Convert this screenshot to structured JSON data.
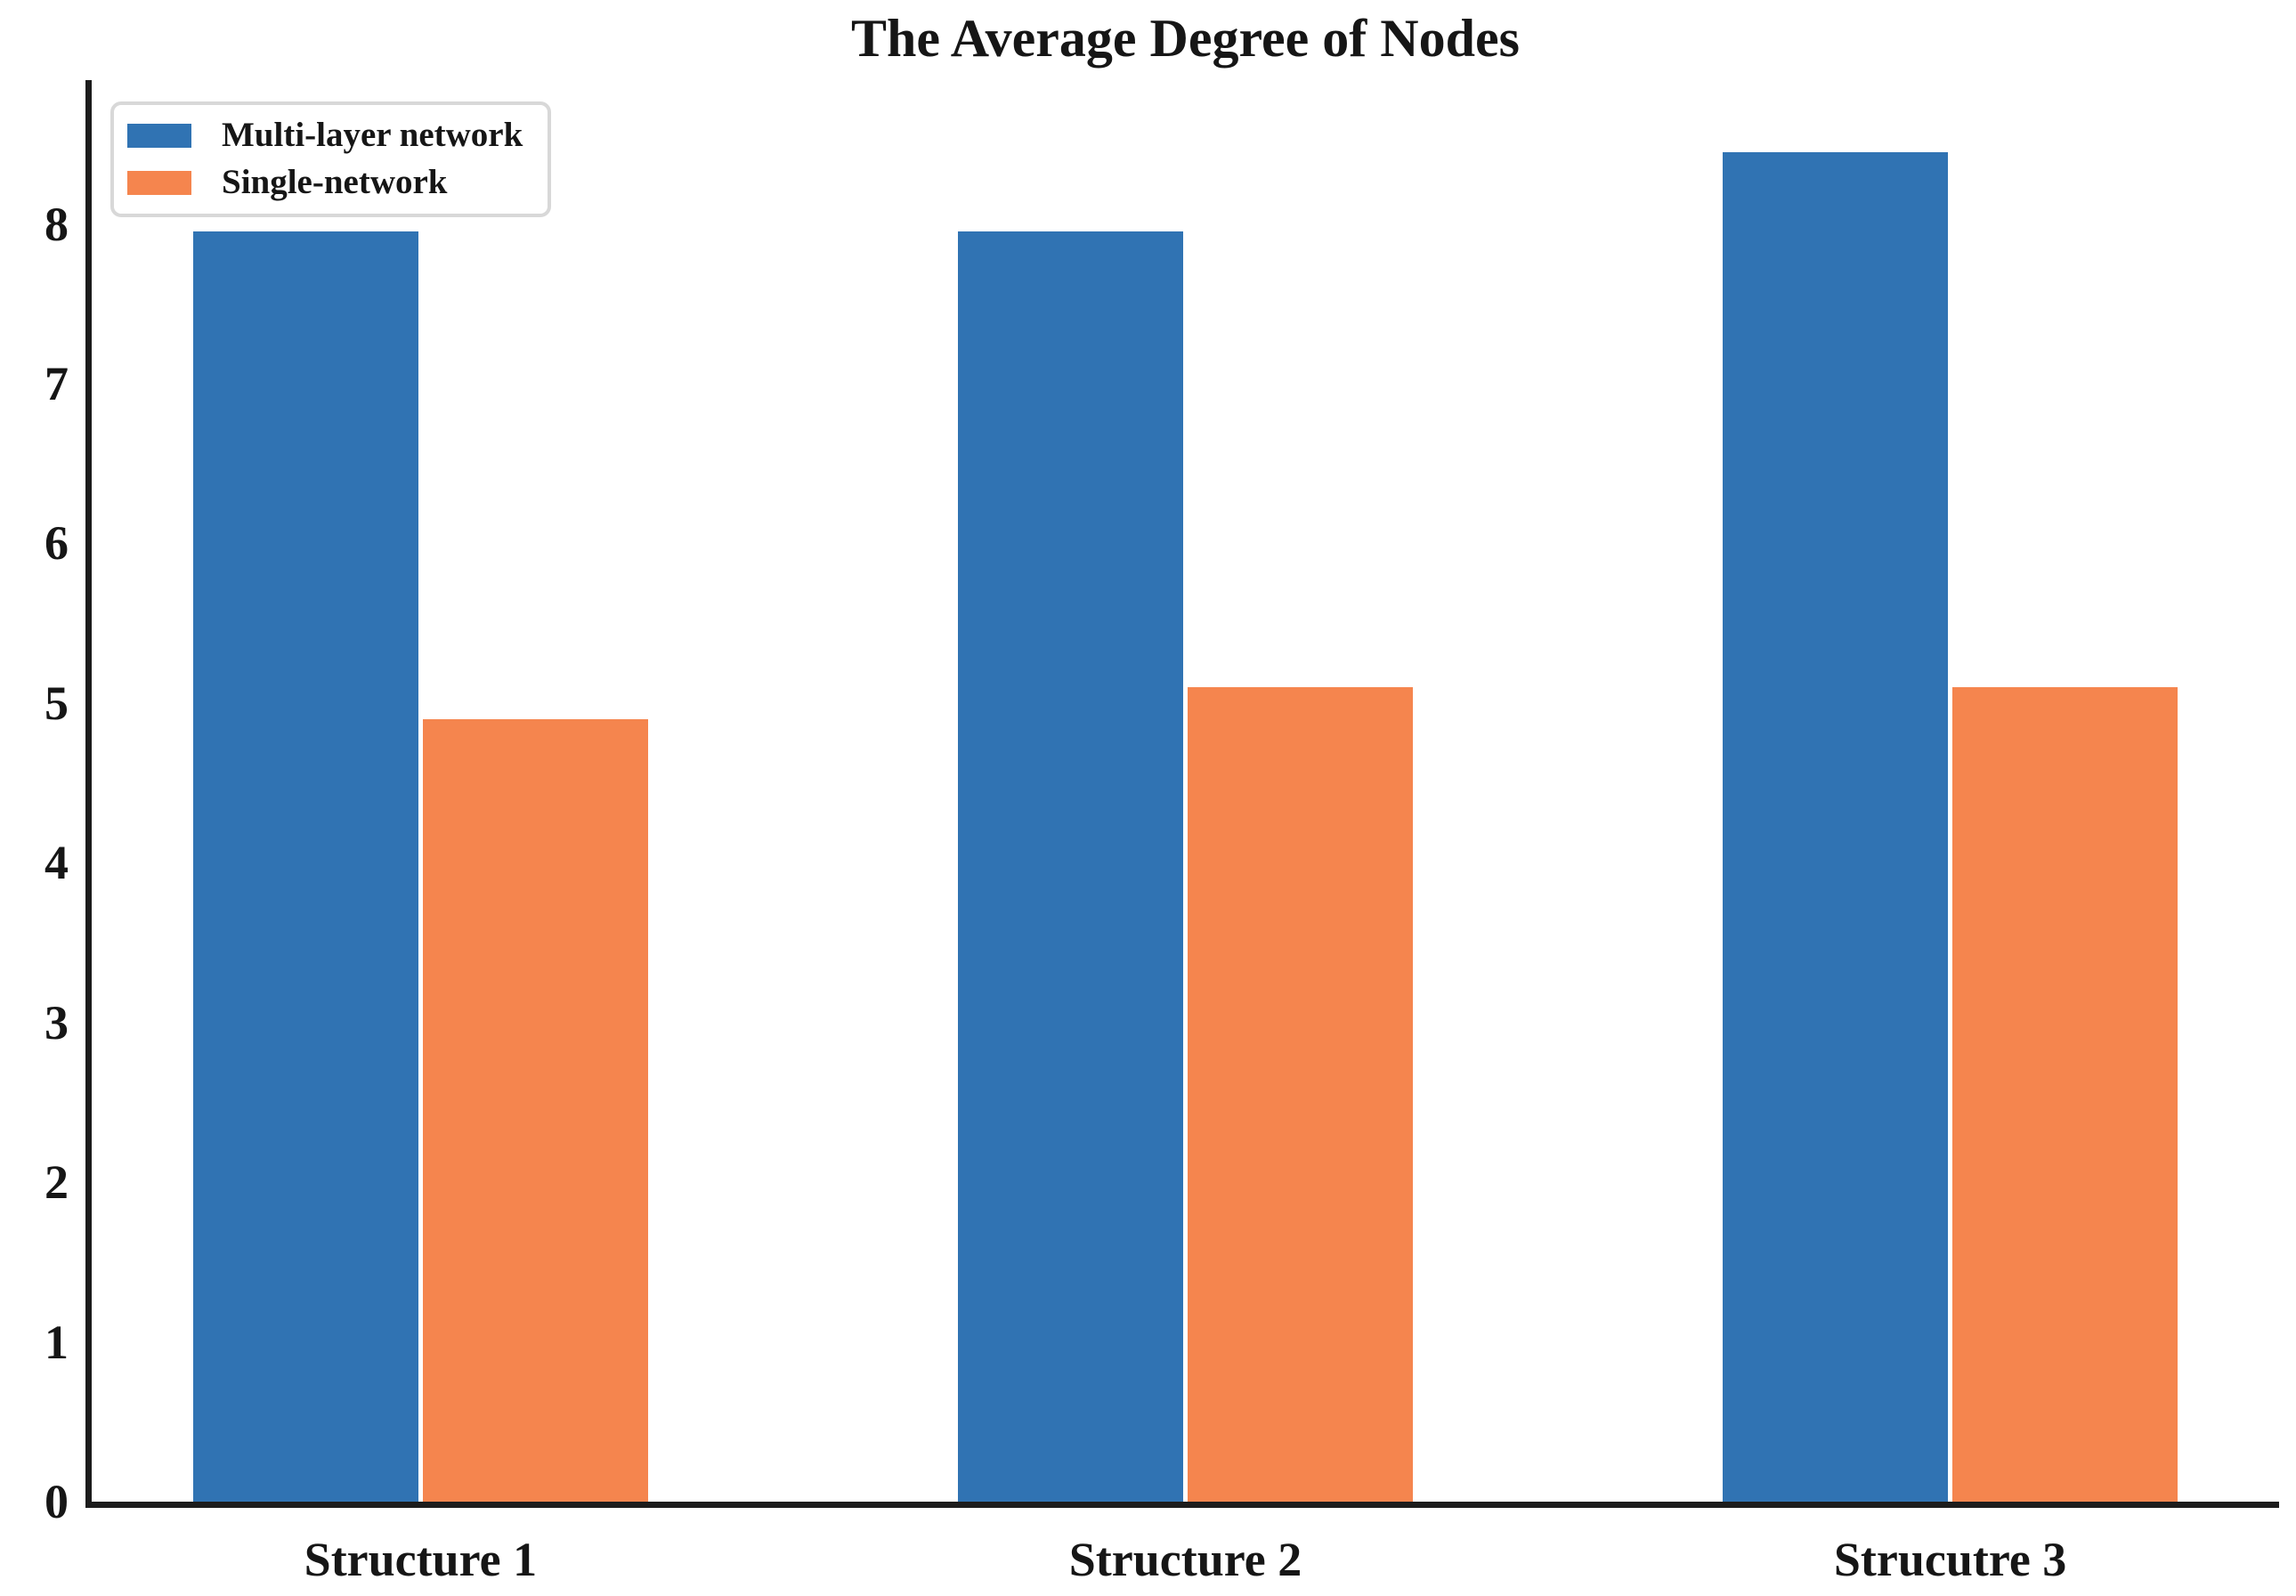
{
  "chart_data": {
    "type": "bar",
    "title": "The Average Degree of Nodes",
    "categories": [
      "Structure 1",
      "Structure 2",
      "Strucutre 3"
    ],
    "series": [
      {
        "name": "Multi-layer network",
        "color": "#3073b3",
        "values": [
          7.95,
          7.95,
          8.45
        ]
      },
      {
        "name": "Single-network",
        "color": "#f5854e",
        "values": [
          4.9,
          5.1,
          5.1
        ]
      }
    ],
    "xlabel": "",
    "ylabel": "",
    "yticks": [
      0,
      1,
      2,
      3,
      4,
      5,
      6,
      7,
      8
    ],
    "ylim": [
      0,
      8.9
    ],
    "xlim": [
      -0.43,
      2.43
    ],
    "bar_width": 0.295,
    "bar_offset": 0.15,
    "grid": false,
    "legend_position": "upper-left"
  },
  "colors": {
    "text": "#161616",
    "axis": "#1c1c1c",
    "background": "#ffffff",
    "legend_border": "#d8d8d8"
  }
}
